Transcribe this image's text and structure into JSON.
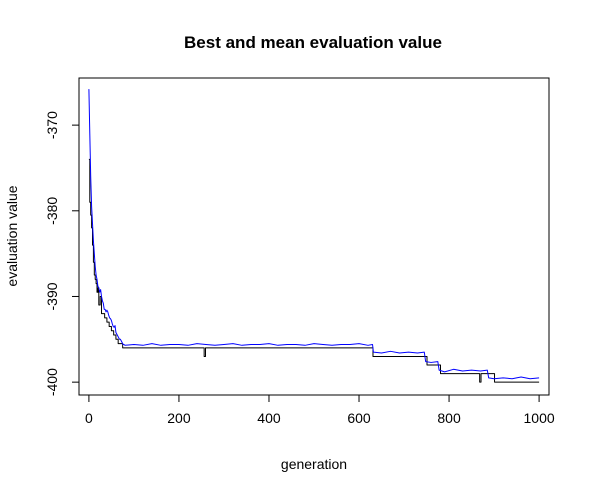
{
  "chart_data": {
    "type": "line",
    "title": "Best and mean evaluation value",
    "xlabel": "generation",
    "ylabel": "evaluation value",
    "xlim": [
      -22,
      1022
    ],
    "ylim": [
      -401.5,
      -364.5
    ],
    "x_ticks": [
      {
        "value": 0,
        "label": "0"
      },
      {
        "value": 200,
        "label": "200"
      },
      {
        "value": 400,
        "label": "400"
      },
      {
        "value": 600,
        "label": "600"
      },
      {
        "value": 800,
        "label": "800"
      },
      {
        "value": 1000,
        "label": "1000"
      }
    ],
    "y_ticks": [
      {
        "value": -370,
        "label": "-370"
      },
      {
        "value": -380,
        "label": "-380"
      },
      {
        "value": -390,
        "label": "-390"
      },
      {
        "value": -400,
        "label": "-400"
      }
    ],
    "grid": false,
    "legend": "none",
    "series": [
      {
        "color": "#000000",
        "style": "step",
        "x": [
          0,
          2,
          4,
          6,
          8,
          10,
          12,
          14,
          16,
          18,
          20,
          22,
          25,
          28,
          30,
          35,
          40,
          45,
          50,
          55,
          60,
          65,
          70,
          75,
          80,
          255,
          256,
          258,
          259,
          630,
          631,
          750,
          751,
          780,
          781,
          867,
          868,
          870,
          871,
          900,
          901,
          1000
        ],
        "y": [
          -374,
          -379,
          -380.5,
          -382,
          -384,
          -386,
          -387.5,
          -388,
          -388.5,
          -389.5,
          -389,
          -391,
          -390,
          -392,
          -392,
          -392.5,
          -393,
          -393.5,
          -394,
          -394.5,
          -395,
          -395.5,
          -395.5,
          -396,
          -396,
          -396,
          -397,
          -397,
          -396,
          -396,
          -397,
          -397,
          -398,
          -398,
          -399,
          -399,
          -400,
          -400,
          -399,
          -399,
          -400,
          -400
        ]
      },
      {
        "color": "#0000ff",
        "style": "line",
        "x": [
          0,
          2,
          4,
          6,
          8,
          10,
          12,
          14,
          16,
          18,
          20,
          22,
          24,
          26,
          28,
          30,
          32,
          34,
          36,
          38,
          40,
          42,
          44,
          46,
          48,
          50,
          52,
          54,
          56,
          58,
          60,
          62,
          64,
          66,
          68,
          70,
          72,
          74,
          76,
          78,
          80,
          100,
          120,
          140,
          160,
          180,
          200,
          220,
          240,
          260,
          280,
          300,
          320,
          340,
          360,
          380,
          400,
          420,
          440,
          460,
          480,
          500,
          520,
          540,
          560,
          580,
          600,
          620,
          630,
          632,
          650,
          670,
          690,
          710,
          730,
          745,
          748,
          760,
          775,
          778,
          790,
          810,
          830,
          850,
          870,
          885,
          888,
          900,
          920,
          940,
          960,
          980,
          1000
        ],
        "y": [
          -365.8,
          -371,
          -376,
          -379.5,
          -381.5,
          -383.5,
          -385,
          -386.5,
          -387.5,
          -388,
          -388.8,
          -389,
          -389.5,
          -389.2,
          -390,
          -390.5,
          -390.8,
          -391.5,
          -391.5,
          -391.8,
          -391.6,
          -391.8,
          -392.2,
          -392.5,
          -392.6,
          -392.8,
          -393.2,
          -393.5,
          -393.6,
          -393.4,
          -394.2,
          -394.4,
          -394.6,
          -394.8,
          -395,
          -395,
          -395.2,
          -395.4,
          -395.6,
          -395.6,
          -395.7,
          -395.6,
          -395.7,
          -395.5,
          -395.7,
          -395.6,
          -395.6,
          -395.7,
          -395.5,
          -395.6,
          -395.7,
          -395.6,
          -395.5,
          -395.7,
          -395.6,
          -395.6,
          -395.5,
          -395.7,
          -395.6,
          -395.6,
          -395.7,
          -395.5,
          -395.6,
          -395.7,
          -395.6,
          -395.6,
          -395.5,
          -395.7,
          -395.6,
          -396.5,
          -396.6,
          -396.4,
          -396.6,
          -396.5,
          -396.6,
          -396.5,
          -397.6,
          -397.7,
          -397.6,
          -398.6,
          -398.8,
          -398.5,
          -398.7,
          -398.6,
          -398.7,
          -398.6,
          -399.5,
          -399.6,
          -399.5,
          -399.6,
          -399.4,
          -399.6,
          -399.5
        ]
      }
    ]
  }
}
